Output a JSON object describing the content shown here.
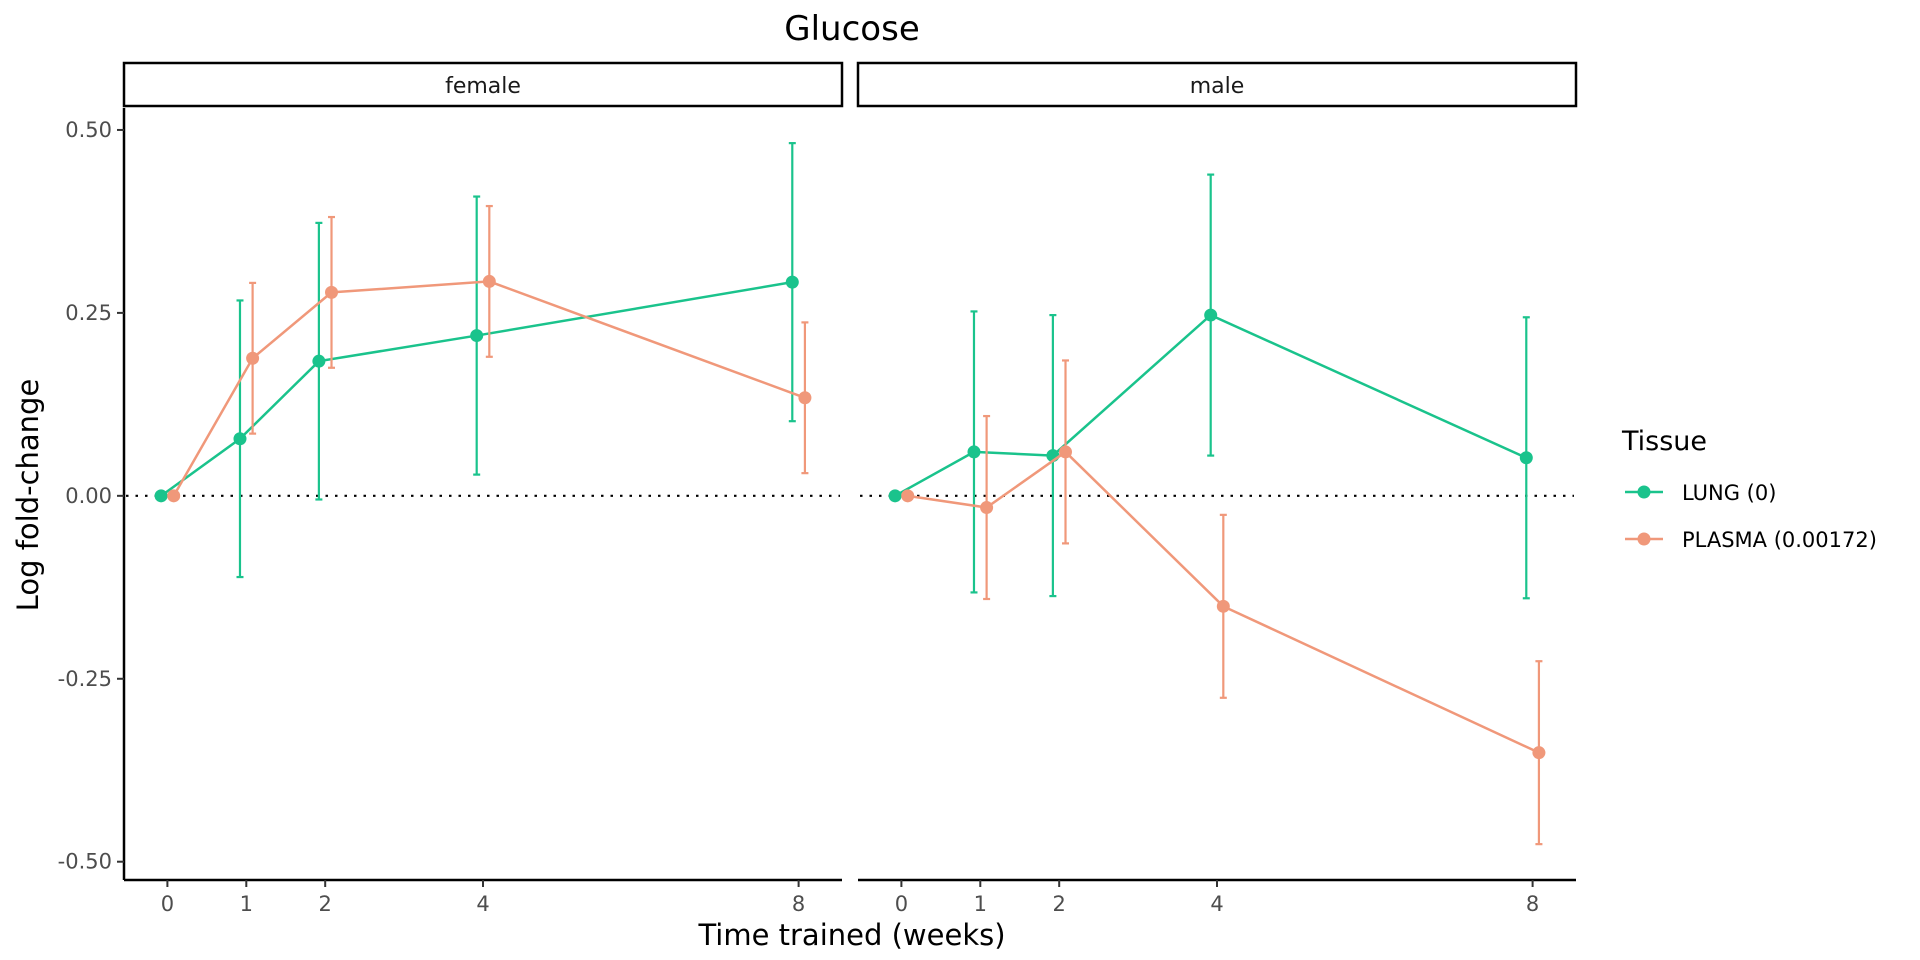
{
  "chart_data": {
    "type": "line",
    "title": "Glucose",
    "xlabel": "Time trained (weeks)",
    "ylabel": "Log fold-change",
    "x_ticks": [
      0,
      1,
      2,
      4,
      8
    ],
    "xlim": [
      -0.55,
      8.55
    ],
    "y_ticks": [
      0.5,
      0.25,
      0.0,
      -0.25,
      -0.5
    ],
    "y_tick_labels": [
      "0.50",
      "0.25",
      "0.00",
      "-0.25",
      "-0.50"
    ],
    "ylim": [
      -0.525,
      0.53
    ],
    "reference_line": {
      "y": 0,
      "style": "dotted"
    },
    "grid": false,
    "legend": {
      "title": "Tissue",
      "placement": "right",
      "entries": [
        "LUNG (0)",
        "PLASMA (0.00172)"
      ]
    },
    "colors": {
      "LUNG (0)": "#1AC38C",
      "PLASMA (0.00172)": "#F0987A"
    },
    "facets": [
      {
        "label": "female",
        "series": [
          {
            "name": "LUNG (0)",
            "x": [
              0,
              1,
              2,
              4,
              8
            ],
            "y": [
              0.0,
              0.078,
              0.184,
              0.219,
              0.292
            ],
            "ymin": [
              0.0,
              -0.111,
              -0.005,
              0.029,
              0.102
            ],
            "ymax": [
              0.0,
              0.267,
              0.373,
              0.409,
              0.482
            ]
          },
          {
            "name": "PLASMA (0.00172)",
            "x": [
              0,
              1,
              2,
              4,
              8
            ],
            "y": [
              0.0,
              0.188,
              0.278,
              0.293,
              0.134
            ],
            "ymin": [
              0.0,
              0.085,
              0.175,
              0.19,
              0.031
            ],
            "ymax": [
              0.0,
              0.291,
              0.381,
              0.396,
              0.237
            ]
          }
        ]
      },
      {
        "label": "male",
        "series": [
          {
            "name": "LUNG (0)",
            "x": [
              0,
              1,
              2,
              4,
              8
            ],
            "y": [
              0.0,
              0.06,
              0.055,
              0.247,
              0.052
            ],
            "ymin": [
              0.0,
              -0.132,
              -0.137,
              0.055,
              -0.14
            ],
            "ymax": [
              0.0,
              0.252,
              0.247,
              0.439,
              0.244
            ]
          },
          {
            "name": "PLASMA (0.00172)",
            "x": [
              0,
              1,
              2,
              4,
              8
            ],
            "y": [
              0.0,
              -0.016,
              0.06,
              -0.151,
              -0.351
            ],
            "ymin": [
              0.0,
              -0.141,
              -0.065,
              -0.276,
              -0.476
            ],
            "ymax": [
              0.0,
              0.109,
              0.185,
              -0.026,
              -0.226
            ]
          }
        ]
      }
    ]
  }
}
